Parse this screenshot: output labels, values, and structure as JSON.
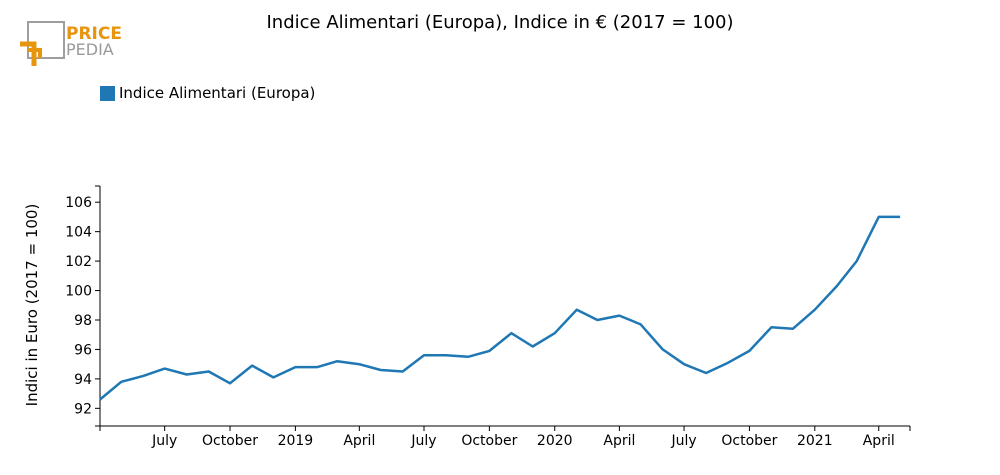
{
  "logo": {
    "text_top": "PRICE",
    "text_bottom": "PEDIA",
    "accent": "#e8950e",
    "frame_color": "#9e9e9e",
    "text_bottom_color": "#9a9a9a"
  },
  "chart_data": {
    "type": "line",
    "title": "Indice Alimentari (Europa), Indice in € (2017 = 100)",
    "ylabel": "Indici in Euro (2017 = 100)",
    "xlabel": "",
    "ylim": [
      90.8,
      107.1
    ],
    "yticks": [
      92,
      94,
      96,
      98,
      100,
      102,
      104,
      106
    ],
    "xlim": [
      "2018-04-01",
      "2021-05-15"
    ],
    "xticks": [
      {
        "date": "2018-07-01",
        "label": "July"
      },
      {
        "date": "2018-10-01",
        "label": "October"
      },
      {
        "date": "2019-01-01",
        "label": "2019"
      },
      {
        "date": "2019-04-01",
        "label": "April"
      },
      {
        "date": "2019-07-01",
        "label": "July"
      },
      {
        "date": "2019-10-01",
        "label": "October"
      },
      {
        "date": "2020-01-01",
        "label": "2020"
      },
      {
        "date": "2020-04-01",
        "label": "April"
      },
      {
        "date": "2020-07-01",
        "label": "July"
      },
      {
        "date": "2020-10-01",
        "label": "October"
      },
      {
        "date": "2021-01-01",
        "label": "2021"
      },
      {
        "date": "2021-04-01",
        "label": "April"
      }
    ],
    "legend_position": "top-left",
    "grid": false,
    "series": [
      {
        "name": "Indice Alimentari (Europa)",
        "color": "#1f77b4",
        "x": [
          "2018-04-01",
          "2018-05-01",
          "2018-06-01",
          "2018-07-01",
          "2018-08-01",
          "2018-09-01",
          "2018-10-01",
          "2018-11-01",
          "2018-12-01",
          "2019-01-01",
          "2019-02-01",
          "2019-03-01",
          "2019-04-01",
          "2019-05-01",
          "2019-06-01",
          "2019-07-01",
          "2019-08-01",
          "2019-09-01",
          "2019-10-01",
          "2019-11-01",
          "2019-12-01",
          "2020-01-01",
          "2020-02-01",
          "2020-03-01",
          "2020-04-01",
          "2020-05-01",
          "2020-06-01",
          "2020-07-01",
          "2020-08-01",
          "2020-09-01",
          "2020-10-01",
          "2020-11-01",
          "2020-12-01",
          "2021-01-01",
          "2021-02-01",
          "2021-03-01",
          "2021-04-01",
          "2021-05-01"
        ],
        "values": [
          92.6,
          93.8,
          94.2,
          94.7,
          94.3,
          94.5,
          93.7,
          94.9,
          94.1,
          94.8,
          94.8,
          95.2,
          95.0,
          94.6,
          94.5,
          95.6,
          95.6,
          95.5,
          95.9,
          97.1,
          96.2,
          97.1,
          98.7,
          98.0,
          98.3,
          97.7,
          96.0,
          95.0,
          94.4,
          95.1,
          95.9,
          97.5,
          97.4,
          98.7,
          100.3,
          102.0,
          105.0,
          105.0
        ]
      }
    ]
  }
}
